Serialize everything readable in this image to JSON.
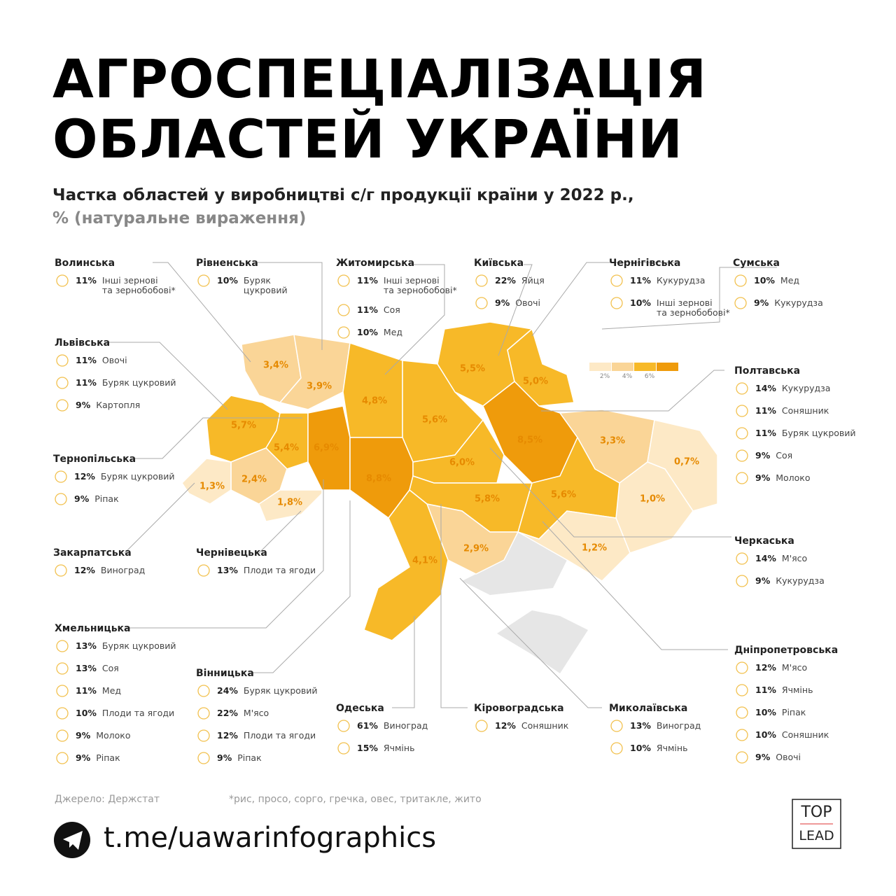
{
  "header": {
    "title": [
      "АГРОСПЕЦІАЛІЗАЦІЯ",
      "ОБЛАСТЕЙ УКРАЇНИ"
    ],
    "subtitle": [
      "Частка областей у виробництві с/г продукції країни у 2022 р.,",
      "% (натуральне вираження)"
    ]
  },
  "legend": {
    "colors": [
      "#fde9c6",
      "#fad597",
      "#f7b928",
      "#ef9b0b"
    ],
    "labels": [
      "2%",
      "4%",
      "6%"
    ]
  },
  "map": {
    "regions": [
      {
        "label": "3,4%",
        "color": "#fad597"
      },
      {
        "label": "3,9%",
        "color": "#fad597"
      },
      {
        "label": "4,8%",
        "color": "#f7b928"
      },
      {
        "label": "5,6%",
        "color": "#f7b928"
      },
      {
        "label": "5,5%",
        "color": "#f7b928"
      },
      {
        "label": "5,0%",
        "color": "#f7b928"
      },
      {
        "label": "5,7%",
        "color": "#f7b928"
      },
      {
        "label": "5,4%",
        "color": "#f7b928"
      },
      {
        "label": "6,9%",
        "color": "#ef9b0b"
      },
      {
        "label": "8,8%",
        "color": "#ef9b0b"
      },
      {
        "label": "2,4%",
        "color": "#fad597"
      },
      {
        "label": "1,3%",
        "color": "#fde9c6"
      },
      {
        "label": "1,8%",
        "color": "#fde9c6"
      },
      {
        "label": "6,0%",
        "color": "#f7b928"
      },
      {
        "label": "8,5%",
        "color": "#ef9b0b"
      },
      {
        "label": "3,3%",
        "color": "#fad597"
      },
      {
        "label": "0,7%",
        "color": "#fde9c6"
      },
      {
        "label": "1,0%",
        "color": "#fde9c6"
      },
      {
        "label": "5,6%",
        "color": "#f7b928"
      },
      {
        "label": "1,2%",
        "color": "#fde9c6"
      },
      {
        "label": "5,8%",
        "color": "#f7b928"
      },
      {
        "label": "2,9%",
        "color": "#fad597"
      },
      {
        "label": "4,1%",
        "color": "#f7b928"
      }
    ]
  },
  "callouts": [
    {
      "name": "Волинська",
      "items": [
        {
          "pct": "11%",
          "product": "Інші зернові\nта зернобобові*"
        }
      ]
    },
    {
      "name": "Рівненська",
      "items": [
        {
          "pct": "10%",
          "product": "Буряк\nцукровий"
        }
      ]
    },
    {
      "name": "Житомирська",
      "items": [
        {
          "pct": "11%",
          "product": "Інші зернові\nта зернобобові*"
        },
        {
          "pct": "11%",
          "product": "Соя"
        },
        {
          "pct": "10%",
          "product": "Мед"
        }
      ]
    },
    {
      "name": "Київська",
      "items": [
        {
          "pct": "22%",
          "product": "Яйця"
        },
        {
          "pct": "9%",
          "product": "Овочі"
        }
      ]
    },
    {
      "name": "Чернігівська",
      "items": [
        {
          "pct": "11%",
          "product": "Кукурудза"
        },
        {
          "pct": "10%",
          "product": "Інші зернові\nта зернобобові*"
        }
      ]
    },
    {
      "name": "Сумська",
      "items": [
        {
          "pct": "10%",
          "product": "Мед"
        },
        {
          "pct": "9%",
          "product": "Кукурудза"
        }
      ]
    },
    {
      "name": "Львівська",
      "items": [
        {
          "pct": "11%",
          "product": "Овочі"
        },
        {
          "pct": "11%",
          "product": "Буряк цукровий"
        },
        {
          "pct": "9%",
          "product": "Картопля"
        }
      ]
    },
    {
      "name": "Полтавська",
      "items": [
        {
          "pct": "14%",
          "product": "Кукурудза"
        },
        {
          "pct": "11%",
          "product": "Соняшник"
        },
        {
          "pct": "11%",
          "product": "Буряк цукровий"
        },
        {
          "pct": "9%",
          "product": "Соя"
        },
        {
          "pct": "9%",
          "product": "Молоко"
        }
      ]
    },
    {
      "name": "Тернопільська",
      "items": [
        {
          "pct": "12%",
          "product": "Буряк цукровий"
        },
        {
          "pct": "9%",
          "product": "Ріпак"
        }
      ]
    },
    {
      "name": "Черкаська",
      "items": [
        {
          "pct": "14%",
          "product": "М'ясо"
        },
        {
          "pct": "9%",
          "product": "Кукурудза"
        }
      ]
    },
    {
      "name": "Закарпатська",
      "items": [
        {
          "pct": "12%",
          "product": "Виноград"
        }
      ]
    },
    {
      "name": "Чернівецька",
      "items": [
        {
          "pct": "13%",
          "product": "Плоди та ягоди"
        }
      ]
    },
    {
      "name": "Хмельницька",
      "items": [
        {
          "pct": "13%",
          "product": "Буряк цукровий"
        },
        {
          "pct": "13%",
          "product": "Соя"
        },
        {
          "pct": "11%",
          "product": "Мед"
        },
        {
          "pct": "10%",
          "product": "Плоди та ягоди"
        },
        {
          "pct": "9%",
          "product": "Молоко"
        },
        {
          "pct": "9%",
          "product": "Ріпак"
        }
      ]
    },
    {
      "name": "Вінницька",
      "items": [
        {
          "pct": "24%",
          "product": "Буряк цукровий"
        },
        {
          "pct": "22%",
          "product": "М'ясо"
        },
        {
          "pct": "12%",
          "product": "Плоди та ягоди"
        },
        {
          "pct": "9%",
          "product": "Ріпак"
        }
      ]
    },
    {
      "name": "Одеська",
      "items": [
        {
          "pct": "61%",
          "product": "Виноград"
        },
        {
          "pct": "15%",
          "product": "Ячмінь"
        }
      ]
    },
    {
      "name": "Кіровоградська",
      "items": [
        {
          "pct": "12%",
          "product": "Соняшник"
        }
      ]
    },
    {
      "name": "Миколаївська",
      "items": [
        {
          "pct": "13%",
          "product": "Виноград"
        },
        {
          "pct": "10%",
          "product": "Ячмінь"
        }
      ]
    },
    {
      "name": "Дніпропетровська",
      "items": [
        {
          "pct": "12%",
          "product": "М'ясо"
        },
        {
          "pct": "11%",
          "product": "Ячмінь"
        },
        {
          "pct": "10%",
          "product": "Ріпак"
        },
        {
          "pct": "10%",
          "product": "Соняшник"
        },
        {
          "pct": "9%",
          "product": "Овочі"
        }
      ]
    }
  ],
  "footer": {
    "source": "Джерело: Держстат",
    "note": "*рис, просо, сорго, гречка, овес, тритакле, жито",
    "link": "t.me/uawarinfographics",
    "logo": [
      "TOP",
      "LEAD"
    ]
  }
}
